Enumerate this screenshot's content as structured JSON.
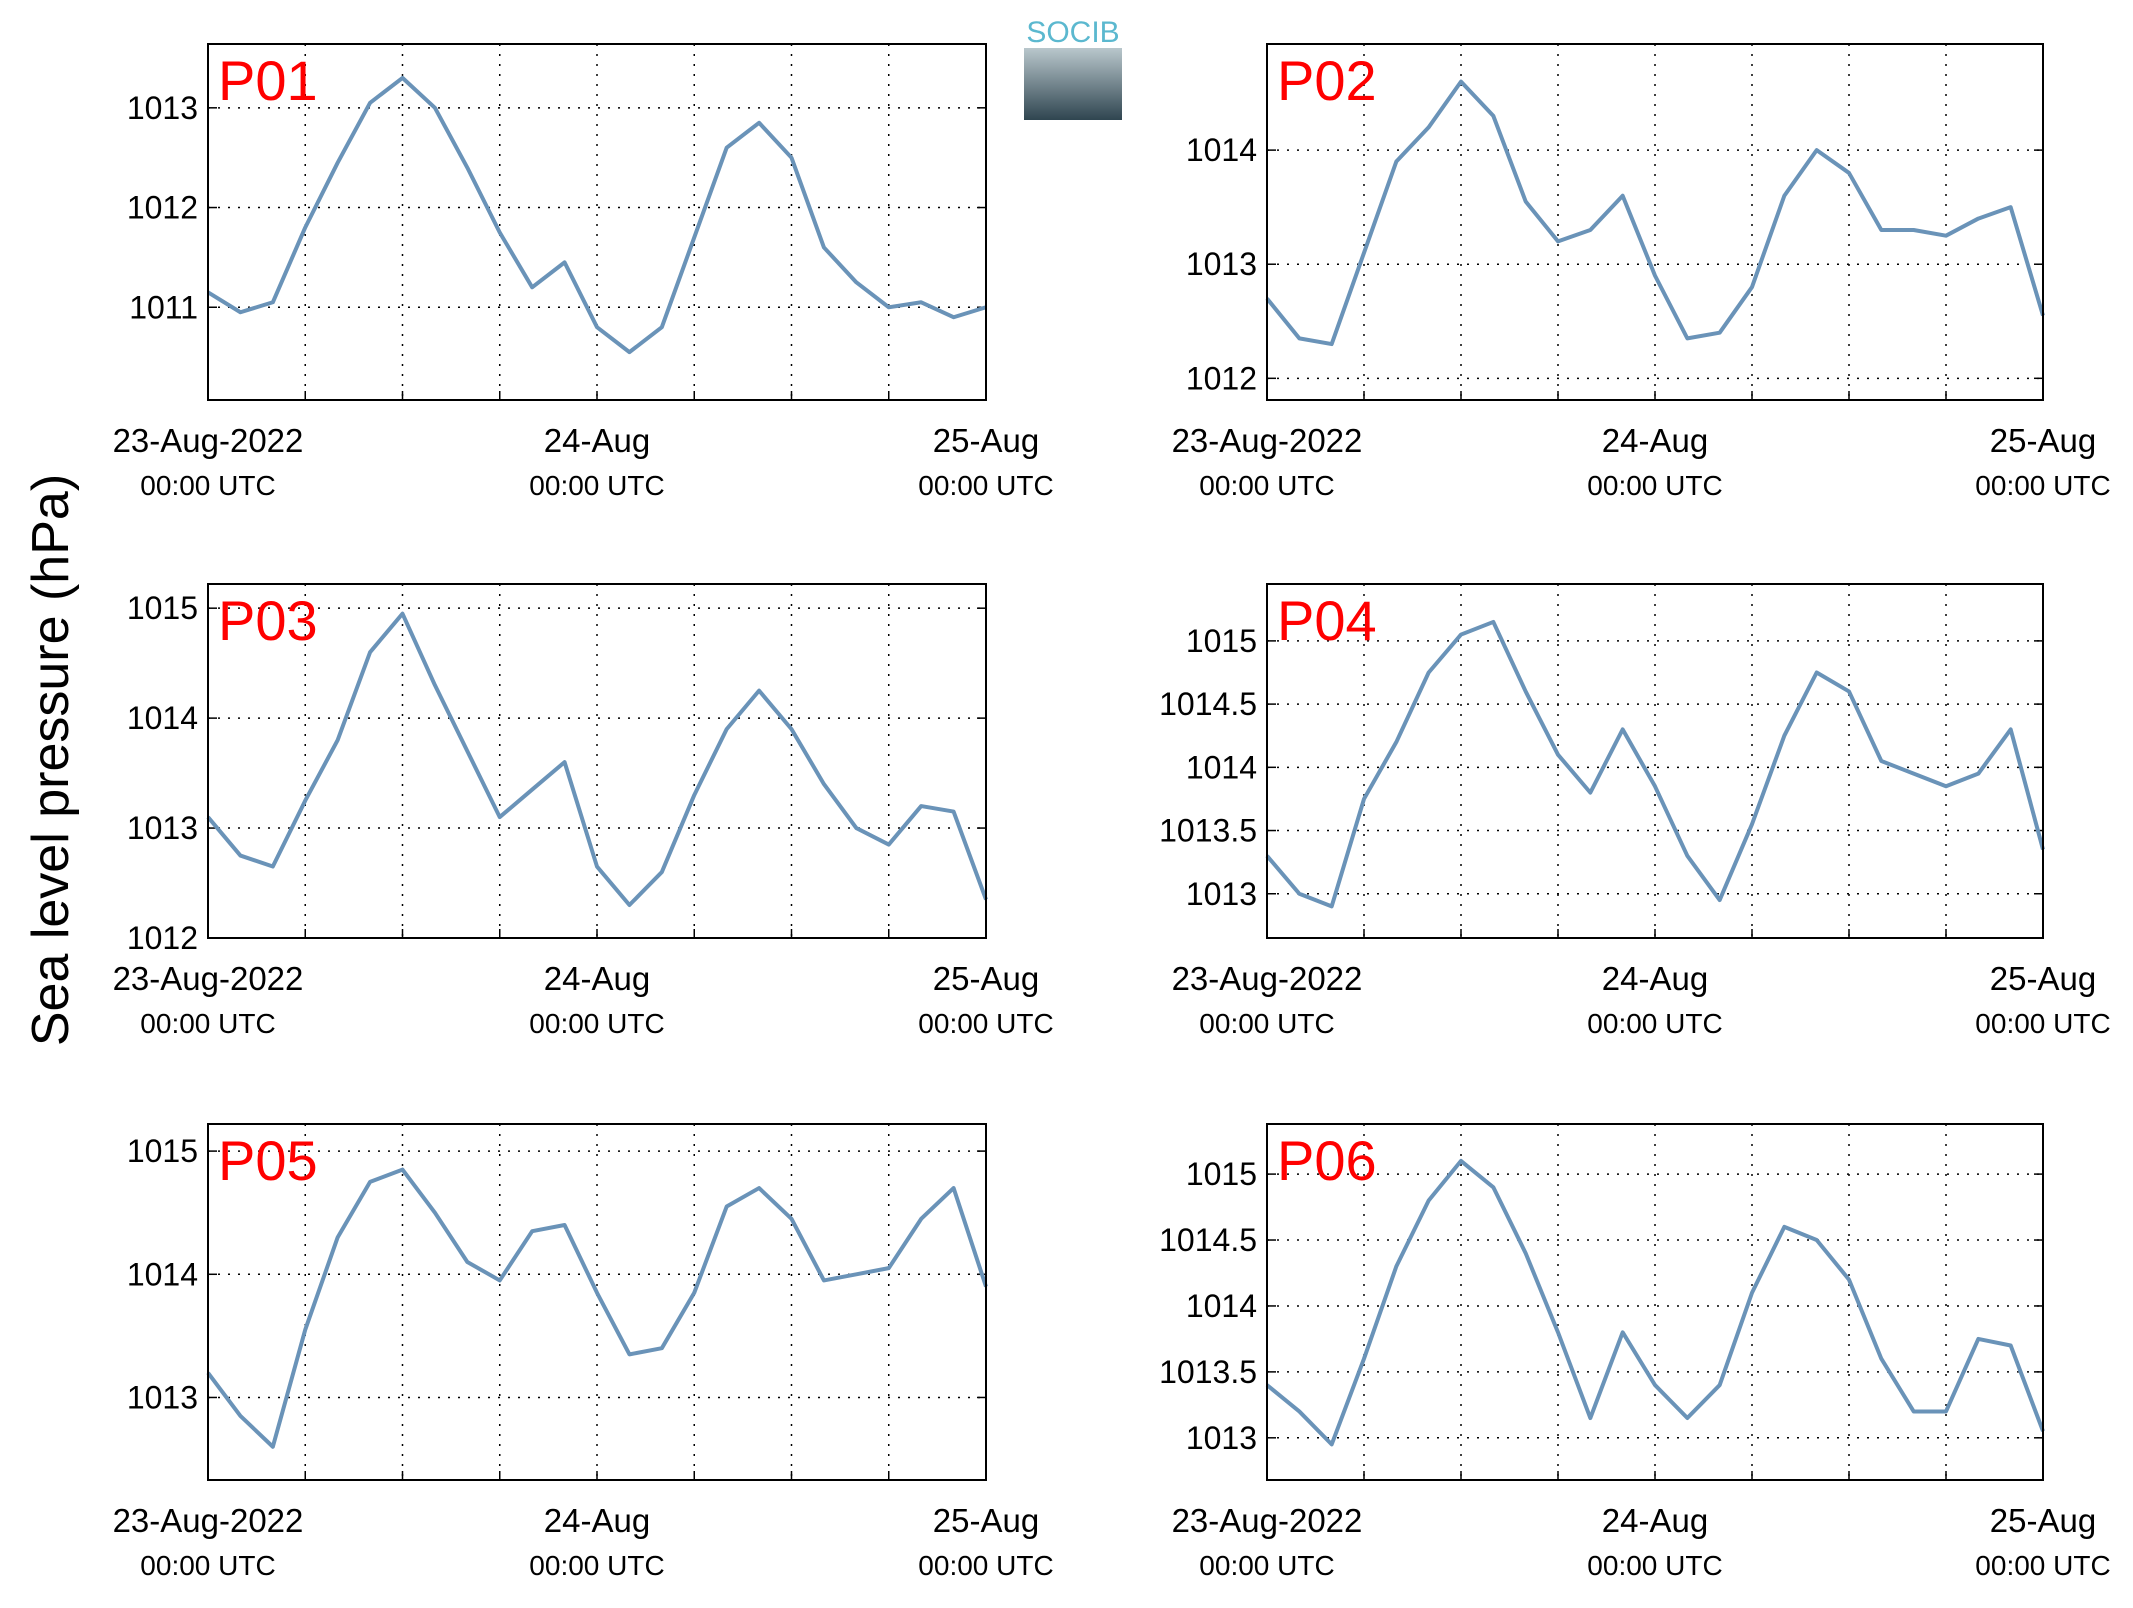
{
  "ylabel": "Sea level pressure (hPa)",
  "logo_text": "SOCIB",
  "chart_data": [
    {
      "type": "line",
      "title": "P01",
      "x": [
        0,
        2,
        4,
        6,
        8,
        10,
        12,
        14,
        16,
        18,
        20,
        22,
        24,
        26,
        28,
        30,
        32,
        34,
        36,
        38,
        40,
        42,
        44,
        46,
        48
      ],
      "series": [
        {
          "name": "P01",
          "color": "#6a93b8",
          "values": [
            1011.15,
            1010.95,
            1011.05,
            1011.8,
            1012.45,
            1013.05,
            1013.3,
            1013.0,
            1012.4,
            1011.75,
            1011.2,
            1011.45,
            1010.8,
            1010.55,
            1010.8,
            1011.7,
            1012.6,
            1012.85,
            1012.5,
            1011.6,
            1011.25,
            1011.0,
            1011.05,
            1010.9,
            1011.0
          ]
        }
      ],
      "xlim": [
        0,
        48
      ],
      "ylim": [
        1010.07,
        1013.64
      ],
      "yticks": [
        1011,
        1012,
        1013
      ],
      "xticks": [
        {
          "value": 0,
          "label": "23-Aug-2022",
          "sublabel": "00:00 UTC"
        },
        {
          "value": 24,
          "label": "24-Aug",
          "sublabel": "00:00 UTC"
        },
        {
          "value": 48,
          "label": "25-Aug",
          "sublabel": "00:00 UTC"
        }
      ],
      "xminor": [
        6,
        12,
        18,
        30,
        36,
        42
      ],
      "grid": true
    },
    {
      "type": "line",
      "title": "P02",
      "x": [
        0,
        2,
        4,
        6,
        8,
        10,
        12,
        14,
        16,
        18,
        20,
        22,
        24,
        26,
        28,
        30,
        32,
        34,
        36,
        38,
        40,
        42,
        44,
        46,
        48
      ],
      "series": [
        {
          "name": "P02",
          "color": "#6a93b8",
          "values": [
            1012.7,
            1012.35,
            1012.3,
            1013.1,
            1013.9,
            1014.2,
            1014.6,
            1014.3,
            1013.55,
            1013.2,
            1013.3,
            1013.6,
            1012.9,
            1012.35,
            1012.4,
            1012.8,
            1013.6,
            1014.0,
            1013.8,
            1013.3,
            1013.3,
            1013.25,
            1013.4,
            1013.5,
            1012.55
          ]
        }
      ],
      "xlim": [
        0,
        48
      ],
      "ylim": [
        1011.81,
        1014.93
      ],
      "yticks": [
        1012,
        1013,
        1014
      ],
      "xticks": [
        {
          "value": 0,
          "label": "23-Aug-2022",
          "sublabel": "00:00 UTC"
        },
        {
          "value": 24,
          "label": "24-Aug",
          "sublabel": "00:00 UTC"
        },
        {
          "value": 48,
          "label": "25-Aug",
          "sublabel": "00:00 UTC"
        }
      ],
      "xminor": [
        6,
        12,
        18,
        30,
        36,
        42
      ],
      "grid": true
    },
    {
      "type": "line",
      "title": "P03",
      "x": [
        0,
        2,
        4,
        6,
        8,
        10,
        12,
        14,
        16,
        18,
        20,
        22,
        24,
        26,
        28,
        30,
        32,
        34,
        36,
        38,
        40,
        42,
        44,
        46,
        48
      ],
      "series": [
        {
          "name": "P03",
          "color": "#6a93b8",
          "values": [
            1013.1,
            1012.75,
            1012.65,
            1013.25,
            1013.8,
            1014.6,
            1014.95,
            1014.3,
            1013.7,
            1013.1,
            1013.35,
            1013.6,
            1012.65,
            1012.3,
            1012.6,
            1013.3,
            1013.9,
            1014.25,
            1013.9,
            1013.4,
            1013.0,
            1012.85,
            1013.2,
            1013.15,
            1012.35
          ]
        }
      ],
      "xlim": [
        0,
        48
      ],
      "ylim": [
        1012,
        1015.22
      ],
      "yticks": [
        1012,
        1013,
        1014,
        1015
      ],
      "xticks": [
        {
          "value": 0,
          "label": "23-Aug-2022",
          "sublabel": "00:00 UTC"
        },
        {
          "value": 24,
          "label": "24-Aug",
          "sublabel": "00:00 UTC"
        },
        {
          "value": 48,
          "label": "25-Aug",
          "sublabel": "00:00 UTC"
        }
      ],
      "xminor": [
        6,
        12,
        18,
        30,
        36,
        42
      ],
      "grid": true
    },
    {
      "type": "line",
      "title": "P04",
      "x": [
        0,
        2,
        4,
        6,
        8,
        10,
        12,
        14,
        16,
        18,
        20,
        22,
        24,
        26,
        28,
        30,
        32,
        34,
        36,
        38,
        40,
        42,
        44,
        46,
        48
      ],
      "series": [
        {
          "name": "P04",
          "color": "#6a93b8",
          "values": [
            1013.3,
            1013.0,
            1012.9,
            1013.75,
            1014.2,
            1014.75,
            1015.05,
            1015.15,
            1014.6,
            1014.1,
            1013.8,
            1014.3,
            1013.85,
            1013.3,
            1012.95,
            1013.55,
            1014.25,
            1014.75,
            1014.6,
            1014.05,
            1013.95,
            1013.85,
            1013.95,
            1014.3,
            1013.35
          ]
        }
      ],
      "xlim": [
        0,
        48
      ],
      "ylim": [
        1012.65,
        1015.45
      ],
      "yticks": [
        1013,
        1013.5,
        1014,
        1014.5,
        1015
      ],
      "xticks": [
        {
          "value": 0,
          "label": "23-Aug-2022",
          "sublabel": "00:00 UTC"
        },
        {
          "value": 24,
          "label": "24-Aug",
          "sublabel": "00:00 UTC"
        },
        {
          "value": 48,
          "label": "25-Aug",
          "sublabel": "00:00 UTC"
        }
      ],
      "xminor": [
        6,
        12,
        18,
        30,
        36,
        42
      ],
      "grid": true
    },
    {
      "type": "line",
      "title": "P05",
      "x": [
        0,
        2,
        4,
        6,
        8,
        10,
        12,
        14,
        16,
        18,
        20,
        22,
        24,
        26,
        28,
        30,
        32,
        34,
        36,
        38,
        40,
        42,
        44,
        46,
        48
      ],
      "series": [
        {
          "name": "P05",
          "color": "#6a93b8",
          "values": [
            1013.2,
            1012.85,
            1012.6,
            1013.55,
            1014.3,
            1014.75,
            1014.85,
            1014.5,
            1014.1,
            1013.95,
            1014.35,
            1014.4,
            1013.85,
            1013.35,
            1013.4,
            1013.85,
            1014.55,
            1014.7,
            1014.45,
            1013.95,
            1014.0,
            1014.05,
            1014.45,
            1014.7,
            1013.9
          ]
        }
      ],
      "xlim": [
        0,
        48
      ],
      "ylim": [
        1012.33,
        1015.22
      ],
      "yticks": [
        1013,
        1014,
        1015
      ],
      "xticks": [
        {
          "value": 0,
          "label": "23-Aug-2022",
          "sublabel": "00:00 UTC"
        },
        {
          "value": 24,
          "label": "24-Aug",
          "sublabel": "00:00 UTC"
        },
        {
          "value": 48,
          "label": "25-Aug",
          "sublabel": "00:00 UTC"
        }
      ],
      "xminor": [
        6,
        12,
        18,
        30,
        36,
        42
      ],
      "grid": true
    },
    {
      "type": "line",
      "title": "P06",
      "x": [
        0,
        2,
        4,
        6,
        8,
        10,
        12,
        14,
        16,
        18,
        20,
        22,
        24,
        26,
        28,
        30,
        32,
        34,
        36,
        38,
        40,
        42,
        44,
        46,
        48
      ],
      "series": [
        {
          "name": "P06",
          "color": "#6a93b8",
          "values": [
            1013.4,
            1013.2,
            1012.95,
            1013.6,
            1014.3,
            1014.8,
            1015.1,
            1014.9,
            1014.4,
            1013.8,
            1013.15,
            1013.8,
            1013.4,
            1013.15,
            1013.4,
            1014.1,
            1014.6,
            1014.5,
            1014.2,
            1013.6,
            1013.2,
            1013.2,
            1013.75,
            1013.7,
            1013.05
          ]
        }
      ],
      "xlim": [
        0,
        48
      ],
      "ylim": [
        1012.68,
        1015.38
      ],
      "yticks": [
        1013,
        1013.5,
        1014,
        1014.5,
        1015
      ],
      "xticks": [
        {
          "value": 0,
          "label": "23-Aug-2022",
          "sublabel": "00:00 UTC"
        },
        {
          "value": 24,
          "label": "24-Aug",
          "sublabel": "00:00 UTC"
        },
        {
          "value": 48,
          "label": "25-Aug",
          "sublabel": "00:00 UTC"
        }
      ],
      "xminor": [
        6,
        12,
        18,
        30,
        36,
        42
      ],
      "grid": true
    }
  ]
}
